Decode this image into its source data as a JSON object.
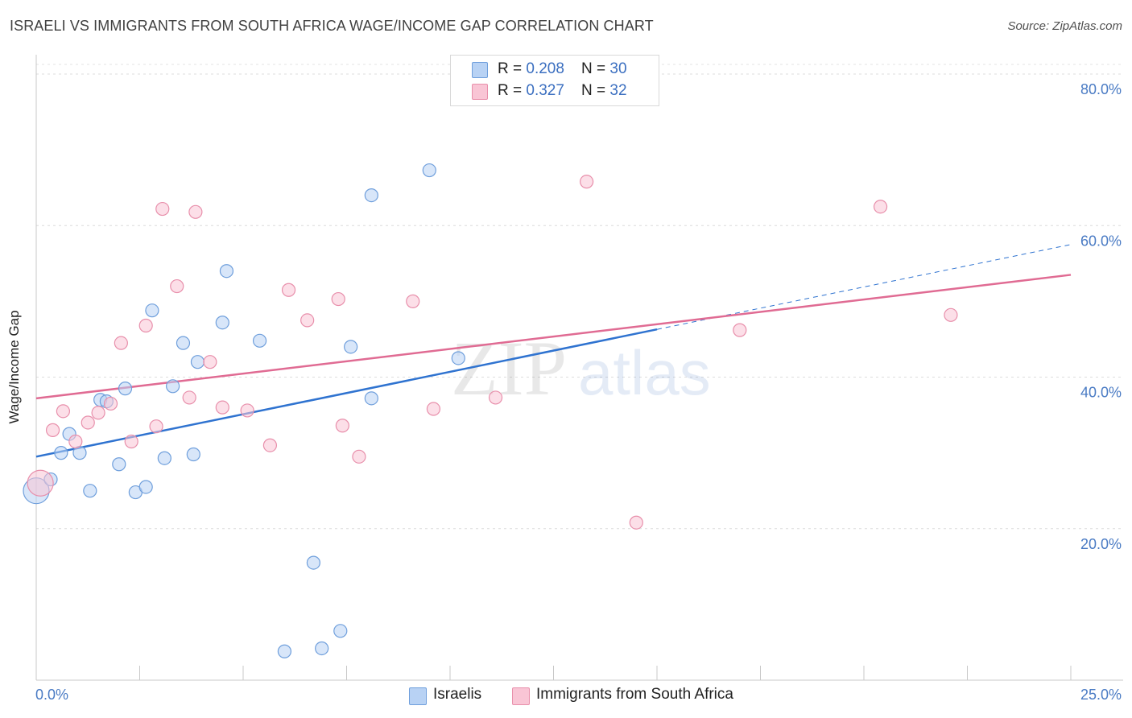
{
  "title": "ISRAELI VS IMMIGRANTS FROM SOUTH AFRICA WAGE/INCOME GAP CORRELATION CHART",
  "source": "Source: ZipAtlas.com",
  "watermark": {
    "zip": "ZIP",
    "atlas": "atlas"
  },
  "legend": {
    "rows": [
      {
        "r_label": "R = ",
        "r_value": "0.208",
        "n_label": "N = ",
        "n_value": "30",
        "color": "#b8d2f4",
        "border": "#6f9fdc"
      },
      {
        "r_label": "R = ",
        "r_value": "0.327",
        "n_label": "N = ",
        "n_value": "32",
        "color": "#f9c5d5",
        "border": "#e88fab"
      }
    ]
  },
  "bottom_legend": [
    {
      "label": "Israelis",
      "color": "#b8d2f4",
      "border": "#6f9fdc"
    },
    {
      "label": "Immigrants from South Africa",
      "color": "#f9c5d5",
      "border": "#e88fab"
    }
  ],
  "chart_data": {
    "type": "scatter",
    "title": "ISRAELI VS IMMIGRANTS FROM SOUTH AFRICA WAGE/INCOME GAP CORRELATION CHART",
    "xlabel": "",
    "ylabel": "Wage/Income Gap",
    "xlim": [
      0,
      25
    ],
    "ylim": [
      0,
      80
    ],
    "x_tick_labels": [
      "0.0%",
      "25.0%"
    ],
    "y_ticks": [
      20,
      40,
      60,
      80
    ],
    "y_tick_labels": [
      "20.0%",
      "40.0%",
      "60.0%",
      "80.0%"
    ],
    "grid": true,
    "series": [
      {
        "name": "Israelis",
        "color": "#6f9fdc",
        "fill": "#b8d2f4",
        "trend_color": "#2f73d0",
        "trend": {
          "x_start": 0,
          "y_start": 29.5,
          "x_solid_end": 15.0,
          "y_solid_end": 46.3,
          "x_end": 25,
          "y_end": 57.5
        },
        "points": [
          {
            "x": 0.0,
            "y": 25.0,
            "big": true
          },
          {
            "x": 0.35,
            "y": 26.5
          },
          {
            "x": 0.6,
            "y": 30.0
          },
          {
            "x": 0.8,
            "y": 32.5
          },
          {
            "x": 1.05,
            "y": 30.0
          },
          {
            "x": 1.3,
            "y": 25.0
          },
          {
            "x": 1.55,
            "y": 37.0
          },
          {
            "x": 1.7,
            "y": 36.8
          },
          {
            "x": 2.0,
            "y": 28.5
          },
          {
            "x": 2.15,
            "y": 38.5
          },
          {
            "x": 2.4,
            "y": 24.8
          },
          {
            "x": 2.65,
            "y": 25.5
          },
          {
            "x": 2.8,
            "y": 48.8
          },
          {
            "x": 3.1,
            "y": 29.3
          },
          {
            "x": 3.3,
            "y": 38.8
          },
          {
            "x": 3.55,
            "y": 44.5
          },
          {
            "x": 3.9,
            "y": 42.0
          },
          {
            "x": 3.8,
            "y": 29.8
          },
          {
            "x": 4.5,
            "y": 47.2
          },
          {
            "x": 4.6,
            "y": 54.0
          },
          {
            "x": 5.4,
            "y": 44.8
          },
          {
            "x": 6.0,
            "y": 3.8
          },
          {
            "x": 6.7,
            "y": 15.5
          },
          {
            "x": 6.9,
            "y": 4.2
          },
          {
            "x": 7.35,
            "y": 6.5
          },
          {
            "x": 7.6,
            "y": 44.0
          },
          {
            "x": 8.1,
            "y": 64.0
          },
          {
            "x": 8.1,
            "y": 37.2
          },
          {
            "x": 9.5,
            "y": 67.3
          },
          {
            "x": 10.2,
            "y": 42.5
          }
        ]
      },
      {
        "name": "Immigrants from South Africa",
        "color": "#e88fab",
        "fill": "#f9c5d5",
        "trend_color": "#e06b93",
        "trend": {
          "x_start": 0,
          "y_start": 37.2,
          "x_end": 25,
          "y_end": 53.5
        },
        "points": [
          {
            "x": 0.1,
            "y": 26.0,
            "big": true
          },
          {
            "x": 0.4,
            "y": 33.0
          },
          {
            "x": 0.65,
            "y": 35.5
          },
          {
            "x": 0.95,
            "y": 31.5
          },
          {
            "x": 1.25,
            "y": 34.0
          },
          {
            "x": 1.5,
            "y": 35.3
          },
          {
            "x": 1.8,
            "y": 36.5
          },
          {
            "x": 2.05,
            "y": 44.5
          },
          {
            "x": 2.3,
            "y": 31.5
          },
          {
            "x": 2.65,
            "y": 46.8
          },
          {
            "x": 2.9,
            "y": 33.5
          },
          {
            "x": 3.05,
            "y": 62.2
          },
          {
            "x": 3.4,
            "y": 52.0
          },
          {
            "x": 3.7,
            "y": 37.3
          },
          {
            "x": 3.85,
            "y": 61.8
          },
          {
            "x": 4.2,
            "y": 42.0
          },
          {
            "x": 4.5,
            "y": 36.0
          },
          {
            "x": 5.1,
            "y": 35.6
          },
          {
            "x": 5.65,
            "y": 31.0
          },
          {
            "x": 6.1,
            "y": 51.5
          },
          {
            "x": 6.55,
            "y": 47.5
          },
          {
            "x": 7.3,
            "y": 50.3
          },
          {
            "x": 7.4,
            "y": 33.6
          },
          {
            "x": 7.8,
            "y": 29.5
          },
          {
            "x": 9.1,
            "y": 50.0
          },
          {
            "x": 9.6,
            "y": 35.8
          },
          {
            "x": 11.1,
            "y": 37.3
          },
          {
            "x": 13.3,
            "y": 65.8
          },
          {
            "x": 14.5,
            "y": 20.8
          },
          {
            "x": 17.0,
            "y": 46.2
          },
          {
            "x": 20.4,
            "y": 62.5
          },
          {
            "x": 22.1,
            "y": 48.2
          }
        ]
      }
    ]
  }
}
